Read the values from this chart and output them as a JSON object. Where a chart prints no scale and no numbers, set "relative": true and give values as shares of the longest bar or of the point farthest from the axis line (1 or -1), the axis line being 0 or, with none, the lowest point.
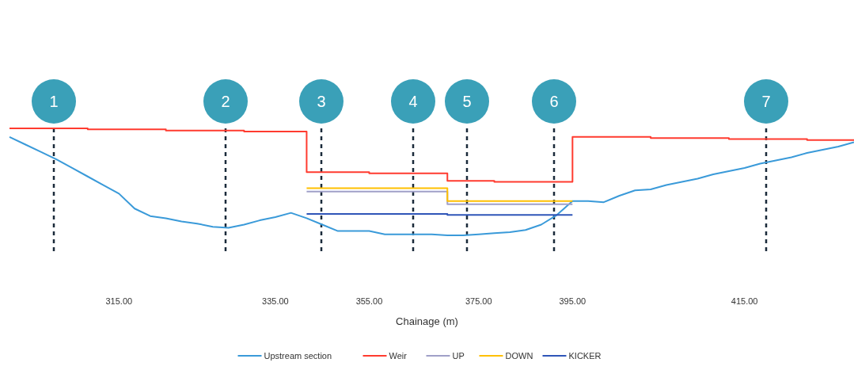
{
  "chart_data": {
    "type": "line",
    "xlabel": "Chainage (m)",
    "relative": true,
    "categories": [
      null,
      null,
      null,
      null,
      null,
      null,
      null,
      "315.00",
      null,
      null,
      null,
      null,
      null,
      null,
      null,
      null,
      null,
      "335.00",
      null,
      null,
      null,
      null,
      null,
      "355.00",
      null,
      null,
      null,
      null,
      null,
      null,
      "375.00",
      null,
      null,
      null,
      null,
      null,
      "395.00",
      null,
      null,
      null,
      null,
      null,
      null,
      null,
      null,
      null,
      null,
      "415.00",
      null,
      null,
      null,
      null,
      null,
      null,
      null
    ],
    "series": [
      {
        "name": "Upstream section",
        "color": "#3a9ad9",
        "values": [
          0.92,
          0.85,
          0.78,
          0.71,
          0.63,
          0.55,
          0.47,
          0.39,
          0.25,
          0.18,
          0.16,
          0.13,
          0.11,
          0.08,
          0.07,
          0.1,
          0.14,
          0.17,
          0.21,
          0.16,
          0.1,
          0.04,
          0.04,
          0.04,
          0.01,
          0.01,
          0.01,
          0.01,
          0.0,
          0.0,
          0.01,
          0.02,
          0.03,
          0.05,
          0.1,
          0.19,
          0.32,
          0.32,
          0.31,
          0.37,
          0.42,
          0.43,
          0.47,
          0.5,
          0.53,
          0.57,
          0.6,
          0.63,
          0.67,
          0.7,
          0.73,
          0.77,
          0.8,
          0.83,
          0.87
        ]
      },
      {
        "name": "Weir",
        "type": "step",
        "color": "#ff3b2f",
        "values": [
          1.0,
          1.0,
          1.0,
          1.0,
          1.0,
          0.99,
          0.99,
          0.99,
          0.99,
          0.99,
          0.98,
          0.98,
          0.98,
          0.98,
          0.98,
          0.97,
          0.97,
          0.97,
          0.97,
          0.59,
          0.59,
          0.59,
          0.59,
          0.58,
          0.58,
          0.58,
          0.58,
          0.58,
          0.51,
          0.51,
          0.51,
          0.5,
          0.5,
          0.5,
          0.5,
          0.5,
          0.92,
          0.92,
          0.92,
          0.92,
          0.92,
          0.91,
          0.91,
          0.91,
          0.91,
          0.91,
          0.9,
          0.9,
          0.9,
          0.9,
          0.9,
          0.89,
          0.89,
          0.89,
          0.89
        ]
      },
      {
        "name": "UP",
        "type": "step",
        "color": "#a0a0c8",
        "values": [
          null,
          null,
          null,
          null,
          null,
          null,
          null,
          null,
          null,
          null,
          null,
          null,
          null,
          null,
          null,
          null,
          null,
          null,
          null,
          0.41,
          0.41,
          0.41,
          0.41,
          0.41,
          0.41,
          0.41,
          0.41,
          0.41,
          0.29,
          0.29,
          0.29,
          0.29,
          0.29,
          0.29,
          0.29,
          0.29,
          0.29,
          null,
          null,
          null,
          null,
          null,
          null,
          null,
          null,
          null,
          null,
          null,
          null,
          null,
          null,
          null,
          null,
          null,
          null
        ]
      },
      {
        "name": "DOWN",
        "type": "step",
        "color": "#ffc000",
        "values": [
          null,
          null,
          null,
          null,
          null,
          null,
          null,
          null,
          null,
          null,
          null,
          null,
          null,
          null,
          null,
          null,
          null,
          null,
          null,
          0.44,
          0.44,
          0.44,
          0.44,
          0.44,
          0.44,
          0.44,
          0.44,
          0.44,
          0.32,
          0.32,
          0.32,
          0.32,
          0.32,
          0.32,
          0.32,
          0.32,
          0.32,
          null,
          null,
          null,
          null,
          null,
          null,
          null,
          null,
          null,
          null,
          null,
          null,
          null,
          null,
          null,
          null,
          null,
          null
        ]
      },
      {
        "name": "KICKER",
        "type": "step",
        "color": "#2f55b8",
        "values": [
          null,
          null,
          null,
          null,
          null,
          null,
          null,
          null,
          null,
          null,
          null,
          null,
          null,
          null,
          null,
          null,
          null,
          null,
          null,
          0.2,
          0.2,
          0.2,
          0.2,
          0.2,
          0.2,
          0.2,
          0.2,
          0.2,
          0.19,
          0.19,
          0.19,
          0.19,
          0.19,
          0.19,
          0.19,
          0.19,
          0.19,
          null,
          null,
          null,
          null,
          null,
          null,
          null,
          null,
          null,
          null,
          null,
          null,
          null,
          null,
          null,
          null,
          null,
          null
        ]
      }
    ],
    "annotations": [
      "1",
      "2",
      "3",
      "4",
      "5",
      "6",
      "7"
    ],
    "legend": "bottom"
  }
}
